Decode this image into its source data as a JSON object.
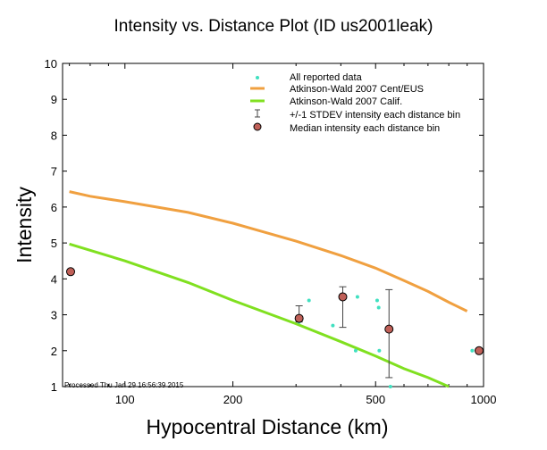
{
  "chart_data": {
    "type": "scatter",
    "title": "Intensity vs. Distance Plot (ID us2001leak)",
    "xlabel": "Hypocentral Distance (km)",
    "ylabel": "Intensity",
    "xscale": "log",
    "xlim": [
      67,
      1000
    ],
    "ylim": [
      1,
      10
    ],
    "xticks": [
      100,
      200,
      500,
      1000
    ],
    "yticks": [
      1,
      2,
      3,
      4,
      5,
      6,
      7,
      8,
      9,
      10
    ],
    "grid": false,
    "legend_position": "top-right",
    "legend": [
      "All reported data",
      "Atkinson-Wald 2007 Cent/EUS",
      "Atkinson-Wald 2007 Calif.",
      "+/-1 STDEV intensity each distance bin",
      "Median intensity each distance bin"
    ],
    "series": [
      {
        "name": "All reported data",
        "kind": "points",
        "color": "#40e0c0",
        "x": [
          306,
          326,
          380,
          440,
          445,
          505,
          510,
          512,
          550,
          930
        ],
        "y": [
          2.8,
          3.4,
          2.7,
          2.0,
          3.5,
          3.4,
          3.2,
          2.0,
          1.0,
          2.0
        ]
      },
      {
        "name": "Atkinson-Wald 2007 Cent/EUS",
        "kind": "line",
        "color": "#f0a040",
        "x": [
          70,
          80,
          100,
          150,
          200,
          300,
          400,
          500,
          600,
          700,
          800,
          900
        ],
        "y": [
          6.43,
          6.3,
          6.15,
          5.85,
          5.55,
          5.05,
          4.65,
          4.3,
          3.95,
          3.65,
          3.35,
          3.1
        ]
      },
      {
        "name": "Atkinson-Wald 2007 Calif.",
        "kind": "line",
        "color": "#80e020",
        "x": [
          70,
          100,
          150,
          200,
          300,
          400,
          500,
          600,
          700,
          800
        ],
        "y": [
          4.97,
          4.5,
          3.9,
          3.4,
          2.75,
          2.25,
          1.85,
          1.5,
          1.25,
          1.0
        ]
      },
      {
        "name": "+/-1 STDEV intensity each distance bin",
        "kind": "errorbars",
        "color": "#444444",
        "x": [
          306,
          405,
          545
        ],
        "low": [
          2.8,
          2.65,
          1.25
        ],
        "high": [
          3.25,
          3.78,
          3.7
        ]
      },
      {
        "name": "Median intensity each distance bin",
        "kind": "markers",
        "color": "#c06058",
        "x": [
          67,
          306,
          405,
          545,
          975
        ],
        "y": [
          4.2,
          2.9,
          3.5,
          2.6,
          2.0
        ]
      }
    ]
  },
  "footer": "Processed Thu Jan 29 16:56:39 2015"
}
